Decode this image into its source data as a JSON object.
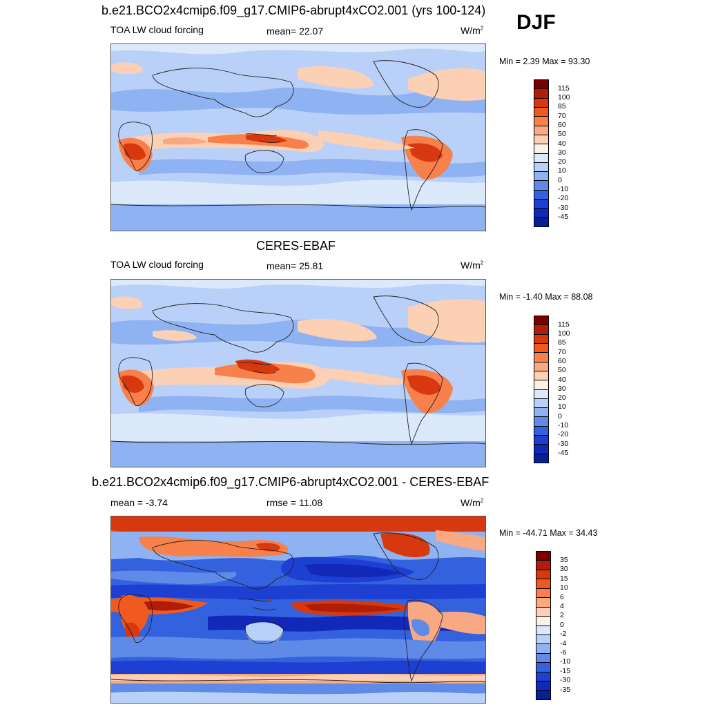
{
  "season": "DJF",
  "panels": [
    {
      "title": "b.e21.BCO2x4cmip6.f09_g17.CMIP6-abrupt4xCO2.001 (yrs 100-124)",
      "left_label": "TOA LW cloud forcing",
      "center_label": "mean=  22.07",
      "units": "W/m",
      "units_sup": "2",
      "minmax": "Min =   2.39 Max =  93.30",
      "colorbar_levels": [
        "115",
        "100",
        "85",
        "70",
        "60",
        "50",
        "40",
        "30",
        "20",
        "10",
        "0",
        "-10",
        "-20",
        "-30",
        "-45"
      ]
    },
    {
      "title": "CERES-EBAF",
      "left_label": "TOA LW cloud forcing",
      "center_label": "mean=  25.81",
      "units": "W/m",
      "units_sup": "2",
      "minmax": "Min =  -1.40 Max =  88.08",
      "colorbar_levels": [
        "115",
        "100",
        "85",
        "70",
        "60",
        "50",
        "40",
        "30",
        "20",
        "10",
        "0",
        "-10",
        "-20",
        "-30",
        "-45"
      ]
    },
    {
      "title": "b.e21.BCO2x4cmip6.f09_g17.CMIP6-abrupt4xCO2.001 - CERES-EBAF",
      "left_label": "mean =  -3.74",
      "center_label": "rmse =  11.08",
      "units": "W/m",
      "units_sup": "2",
      "minmax": "Min = -44.71 Max =  34.43",
      "colorbar_levels": [
        "35",
        "30",
        "15",
        "10",
        "6",
        "4",
        "2",
        "0",
        "-2",
        "-4",
        "-6",
        "-10",
        "-15",
        "-30",
        "-35"
      ]
    }
  ],
  "colors": {
    "field_scale": [
      "#7a0000",
      "#b01e0a",
      "#d8380d",
      "#f05a1e",
      "#f8804a",
      "#f8a882",
      "#fcd0b4",
      "#fdf0e4",
      "#dce9fb",
      "#b9d0f8",
      "#8fb2f3",
      "#5f8ae8",
      "#3462de",
      "#1d3fd2",
      "#1228b8",
      "#081f96",
      "#000c6c"
    ],
    "diff_scale": [
      "#7a0000",
      "#b01e0a",
      "#d8380d",
      "#f05a1e",
      "#f8804a",
      "#f8a882",
      "#fcd0b4",
      "#fdf0e4",
      "#dce9fb",
      "#b9d0f8",
      "#8fb2f3",
      "#5f8ae8",
      "#3462de",
      "#1d3fd2",
      "#1228b8",
      "#081f96",
      "#000c6c"
    ]
  }
}
